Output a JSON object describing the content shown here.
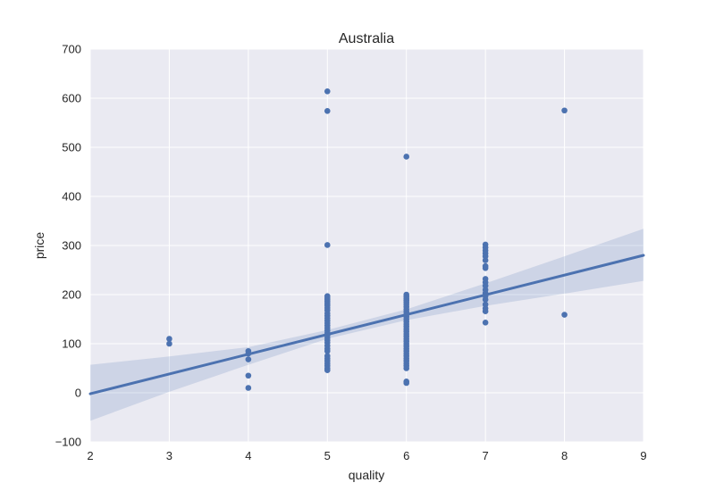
{
  "chart_data": {
    "type": "scatter",
    "title": "Australia",
    "xlabel": "quality",
    "ylabel": "price",
    "xlim": [
      2,
      9
    ],
    "ylim": [
      -100,
      700
    ],
    "xticks": [
      2,
      3,
      4,
      5,
      6,
      7,
      8,
      9
    ],
    "yticks": [
      -100,
      0,
      100,
      200,
      300,
      400,
      500,
      600,
      700
    ],
    "ytick_labels": [
      "−100",
      "0",
      "100",
      "200",
      "300",
      "400",
      "500",
      "600",
      "700"
    ],
    "grid": true,
    "colors": {
      "points": "#4c72b0",
      "line": "#4c72b0",
      "band": "#4c72b0",
      "background": "#eaeaf2",
      "grid": "#ffffff"
    },
    "points": [
      {
        "x": 3,
        "y": 110
      },
      {
        "x": 3,
        "y": 100
      },
      {
        "x": 4,
        "y": 85
      },
      {
        "x": 4,
        "y": 80
      },
      {
        "x": 4,
        "y": 68
      },
      {
        "x": 4,
        "y": 35
      },
      {
        "x": 4,
        "y": 10
      },
      {
        "x": 5,
        "y": 614
      },
      {
        "x": 5,
        "y": 574
      },
      {
        "x": 5,
        "y": 301
      },
      {
        "x": 5,
        "y": 197
      },
      {
        "x": 5,
        "y": 193
      },
      {
        "x": 5,
        "y": 190
      },
      {
        "x": 5,
        "y": 186
      },
      {
        "x": 5,
        "y": 182
      },
      {
        "x": 5,
        "y": 178
      },
      {
        "x": 5,
        "y": 173
      },
      {
        "x": 5,
        "y": 168
      },
      {
        "x": 5,
        "y": 162
      },
      {
        "x": 5,
        "y": 157
      },
      {
        "x": 5,
        "y": 152
      },
      {
        "x": 5,
        "y": 147
      },
      {
        "x": 5,
        "y": 142
      },
      {
        "x": 5,
        "y": 137
      },
      {
        "x": 5,
        "y": 132
      },
      {
        "x": 5,
        "y": 127
      },
      {
        "x": 5,
        "y": 122
      },
      {
        "x": 5,
        "y": 117
      },
      {
        "x": 5,
        "y": 112
      },
      {
        "x": 5,
        "y": 107
      },
      {
        "x": 5,
        "y": 102
      },
      {
        "x": 5,
        "y": 96
      },
      {
        "x": 5,
        "y": 90
      },
      {
        "x": 5,
        "y": 85
      },
      {
        "x": 5,
        "y": 75
      },
      {
        "x": 5,
        "y": 70
      },
      {
        "x": 5,
        "y": 65
      },
      {
        "x": 5,
        "y": 60
      },
      {
        "x": 5,
        "y": 55
      },
      {
        "x": 5,
        "y": 50
      },
      {
        "x": 5,
        "y": 46
      },
      {
        "x": 6,
        "y": 481
      },
      {
        "x": 6,
        "y": 200
      },
      {
        "x": 6,
        "y": 196
      },
      {
        "x": 6,
        "y": 192
      },
      {
        "x": 6,
        "y": 188
      },
      {
        "x": 6,
        "y": 184
      },
      {
        "x": 6,
        "y": 180
      },
      {
        "x": 6,
        "y": 175
      },
      {
        "x": 6,
        "y": 170
      },
      {
        "x": 6,
        "y": 165
      },
      {
        "x": 6,
        "y": 160
      },
      {
        "x": 6,
        "y": 155
      },
      {
        "x": 6,
        "y": 150
      },
      {
        "x": 6,
        "y": 145
      },
      {
        "x": 6,
        "y": 140
      },
      {
        "x": 6,
        "y": 135
      },
      {
        "x": 6,
        "y": 130
      },
      {
        "x": 6,
        "y": 125
      },
      {
        "x": 6,
        "y": 120
      },
      {
        "x": 6,
        "y": 115
      },
      {
        "x": 6,
        "y": 110
      },
      {
        "x": 6,
        "y": 105
      },
      {
        "x": 6,
        "y": 100
      },
      {
        "x": 6,
        "y": 95
      },
      {
        "x": 6,
        "y": 90
      },
      {
        "x": 6,
        "y": 85
      },
      {
        "x": 6,
        "y": 80
      },
      {
        "x": 6,
        "y": 75
      },
      {
        "x": 6,
        "y": 70
      },
      {
        "x": 6,
        "y": 65
      },
      {
        "x": 6,
        "y": 60
      },
      {
        "x": 6,
        "y": 55
      },
      {
        "x": 6,
        "y": 50
      },
      {
        "x": 6,
        "y": 23
      },
      {
        "x": 6,
        "y": 20
      },
      {
        "x": 7,
        "y": 302
      },
      {
        "x": 7,
        "y": 296
      },
      {
        "x": 7,
        "y": 290
      },
      {
        "x": 7,
        "y": 284
      },
      {
        "x": 7,
        "y": 278
      },
      {
        "x": 7,
        "y": 270
      },
      {
        "x": 7,
        "y": 258
      },
      {
        "x": 7,
        "y": 254
      },
      {
        "x": 7,
        "y": 232
      },
      {
        "x": 7,
        "y": 225
      },
      {
        "x": 7,
        "y": 218
      },
      {
        "x": 7,
        "y": 210
      },
      {
        "x": 7,
        "y": 203
      },
      {
        "x": 7,
        "y": 197
      },
      {
        "x": 7,
        "y": 190
      },
      {
        "x": 7,
        "y": 180
      },
      {
        "x": 7,
        "y": 172
      },
      {
        "x": 7,
        "y": 166
      },
      {
        "x": 7,
        "y": 143
      },
      {
        "x": 8,
        "y": 575
      },
      {
        "x": 8,
        "y": 159
      }
    ],
    "regression": {
      "x": [
        2,
        9
      ],
      "y": [
        -2,
        280
      ]
    },
    "confidence_band": {
      "x": [
        2,
        3,
        4,
        5,
        6,
        7,
        8,
        9
      ],
      "upper": [
        57,
        74,
        93,
        128,
        170,
        223,
        278,
        334
      ],
      "lower": [
        -57,
        2,
        57,
        110,
        148,
        177,
        202,
        228
      ]
    }
  }
}
